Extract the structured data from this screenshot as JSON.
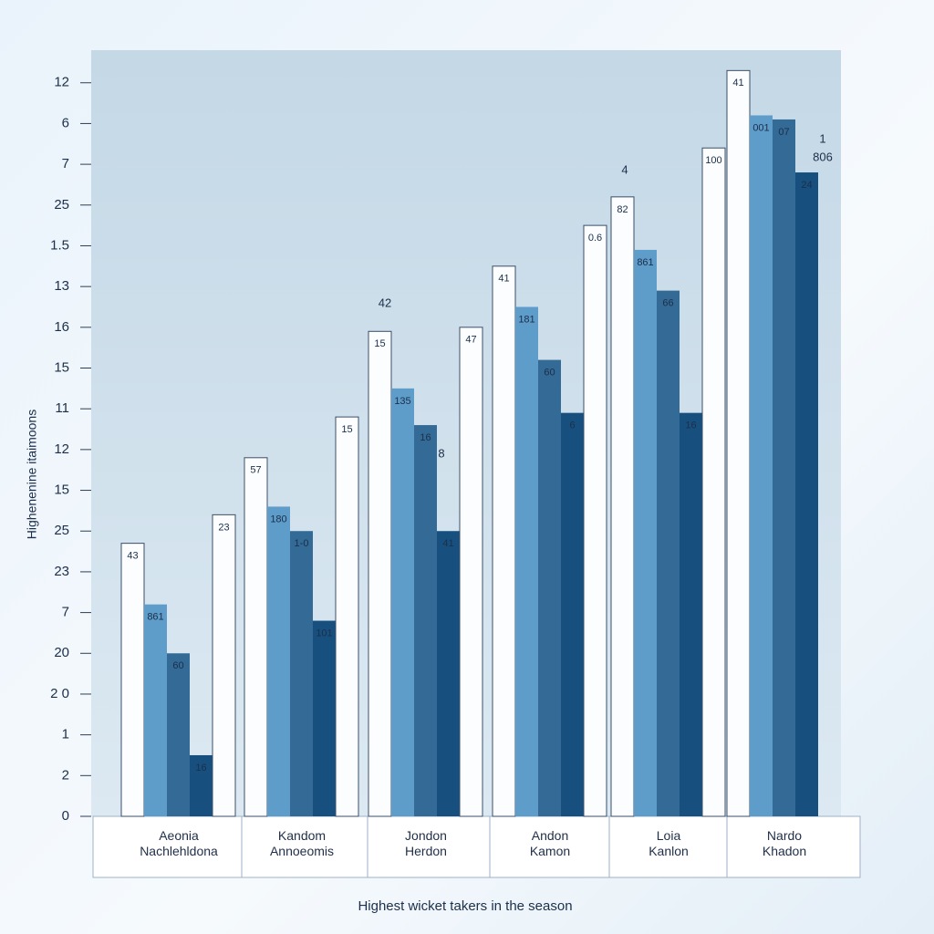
{
  "chart_data": {
    "type": "bar",
    "x_label": "Highest wicket takers in the season",
    "y_label": "Highenenine itaimoons",
    "categories": [
      "Aeonia\nNachlehldona",
      "Kandom\nAnnoeomis",
      "Jondon\nHerdon",
      "Andon\nKamon",
      "Loia\nKanlon",
      "Nardo\nKhadon"
    ],
    "series": [
      {
        "color": "#fbfdff",
        "values": [
          6.7,
          8.8,
          11.9,
          13.5,
          15.2,
          18.3
        ],
        "value_labels": [
          "43",
          "57",
          "15",
          "41",
          "82",
          "41"
        ]
      },
      {
        "color": "#5e9cca",
        "values": [
          5.2,
          7.6,
          10.5,
          12.5,
          13.9,
          17.2
        ],
        "value_labels": [
          "861",
          "180",
          "135",
          "181",
          "861",
          "001"
        ]
      },
      {
        "color": "#336a96",
        "values": [
          4.0,
          7.0,
          9.6,
          11.2,
          12.9,
          17.1
        ],
        "value_labels": [
          "60",
          "1-0",
          "16",
          "60",
          "66",
          "07"
        ]
      },
      {
        "color": "#17507f",
        "values": [
          1.5,
          4.8,
          7.0,
          9.9,
          9.9,
          15.8
        ],
        "value_labels": [
          "16",
          "101",
          "41",
          "6",
          "16",
          "24"
        ]
      },
      {
        "color": "#fbfdff",
        "values": [
          7.4,
          9.8,
          12.0,
          14.5,
          16.4,
          null
        ],
        "value_labels": [
          "23",
          "15",
          "47",
          "0.6",
          "100",
          null
        ]
      }
    ],
    "annotations": [
      "42",
      "4",
      "8",
      "1",
      "806"
    ],
    "ylim": [
      0,
      18.8
    ],
    "yticks": [
      0,
      {
        "value": 1,
        "label": "2"
      },
      {
        "value": 2,
        "label": "1"
      },
      {
        "value": 3,
        "label": "2 0"
      },
      {
        "value": 4,
        "label": "20"
      },
      {
        "value": 5,
        "label": "7"
      },
      {
        "value": 6,
        "label": "23"
      },
      {
        "value": 7,
        "label": "25"
      },
      {
        "value": 8,
        "label": "15"
      },
      {
        "value": 9,
        "label": "12"
      },
      {
        "value": 10,
        "label": "11"
      },
      {
        "value": 11,
        "label": "15"
      },
      {
        "value": 12,
        "label": "16"
      },
      {
        "value": 13,
        "label": "13"
      },
      {
        "value": 14,
        "label": "1.5"
      },
      {
        "value": 15,
        "label": "25"
      },
      {
        "value": 16,
        "label": "7"
      },
      {
        "value": 17,
        "label": "6"
      },
      {
        "value": 18,
        "label": "12"
      }
    ],
    "grid": false
  }
}
